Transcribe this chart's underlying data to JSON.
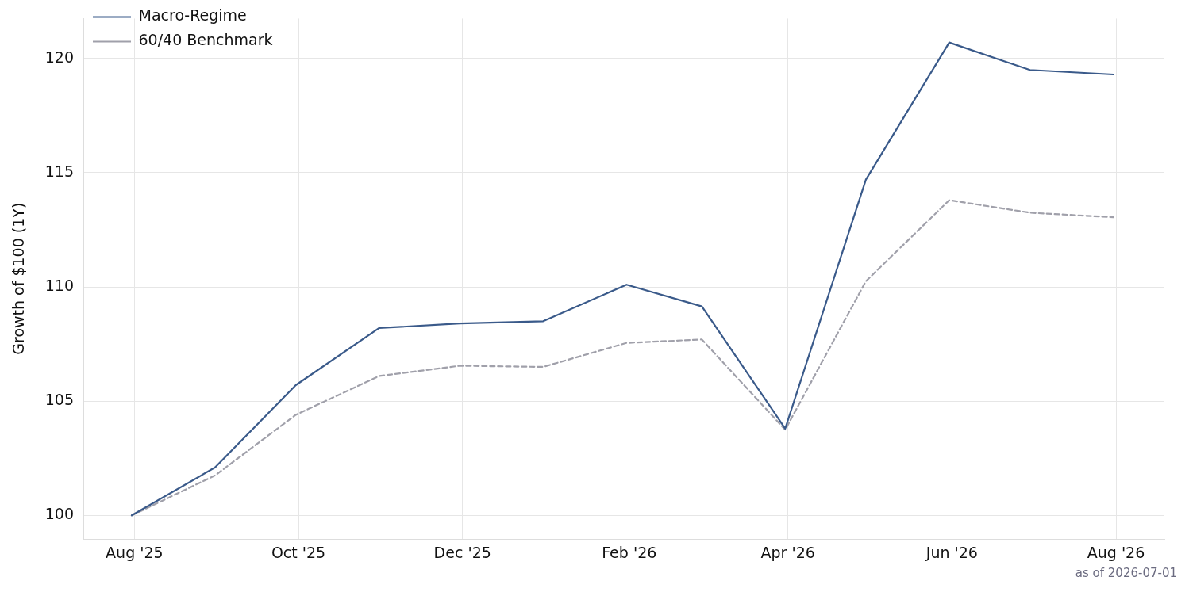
{
  "chart_data": {
    "type": "line",
    "ylabel": "Growth of $100 (1Y)",
    "annotations": [
      "as of 2026-07-01"
    ],
    "x": [
      "2025-07-31",
      "2025-08-31",
      "2025-09-30",
      "2025-10-31",
      "2025-11-30",
      "2025-12-31",
      "2026-01-31",
      "2026-02-28",
      "2026-03-31",
      "2026-04-30",
      "2026-05-31",
      "2026-06-30",
      "2026-07-31"
    ],
    "series": [
      {
        "name": "Macro-Regime",
        "color": "#3a5a8a",
        "line_style": "solid",
        "values": [
          100,
          102.1,
          105.7,
          108.2,
          108.4,
          108.5,
          110.1,
          109.15,
          103.8,
          114.7,
          120.7,
          119.5,
          119.3
        ]
      },
      {
        "name": "60/40 Benchmark",
        "color": "#a0a0aa",
        "line_style": "dashed",
        "values": [
          100,
          101.75,
          104.4,
          106.1,
          106.55,
          106.5,
          107.55,
          107.7,
          103.75,
          110.25,
          113.8,
          113.25,
          113.05
        ]
      }
    ],
    "xlim": [
      "2025-07-13",
      "2026-08-19"
    ],
    "xticks": [
      {
        "value": "2025-08-01",
        "label": "Aug '25"
      },
      {
        "value": "2025-10-01",
        "label": "Oct '25"
      },
      {
        "value": "2025-12-01",
        "label": "Dec '25"
      },
      {
        "value": "2026-02-01",
        "label": "Feb '26"
      },
      {
        "value": "2026-04-01",
        "label": "Apr '26"
      },
      {
        "value": "2026-06-01",
        "label": "Jun '26"
      },
      {
        "value": "2026-08-01",
        "label": "Aug '26"
      }
    ],
    "ylim": [
      98.97,
      121.75
    ],
    "yticks": [
      100,
      105,
      110,
      115,
      120
    ],
    "grid": true,
    "legend": "top left",
    "marker": "none"
  }
}
